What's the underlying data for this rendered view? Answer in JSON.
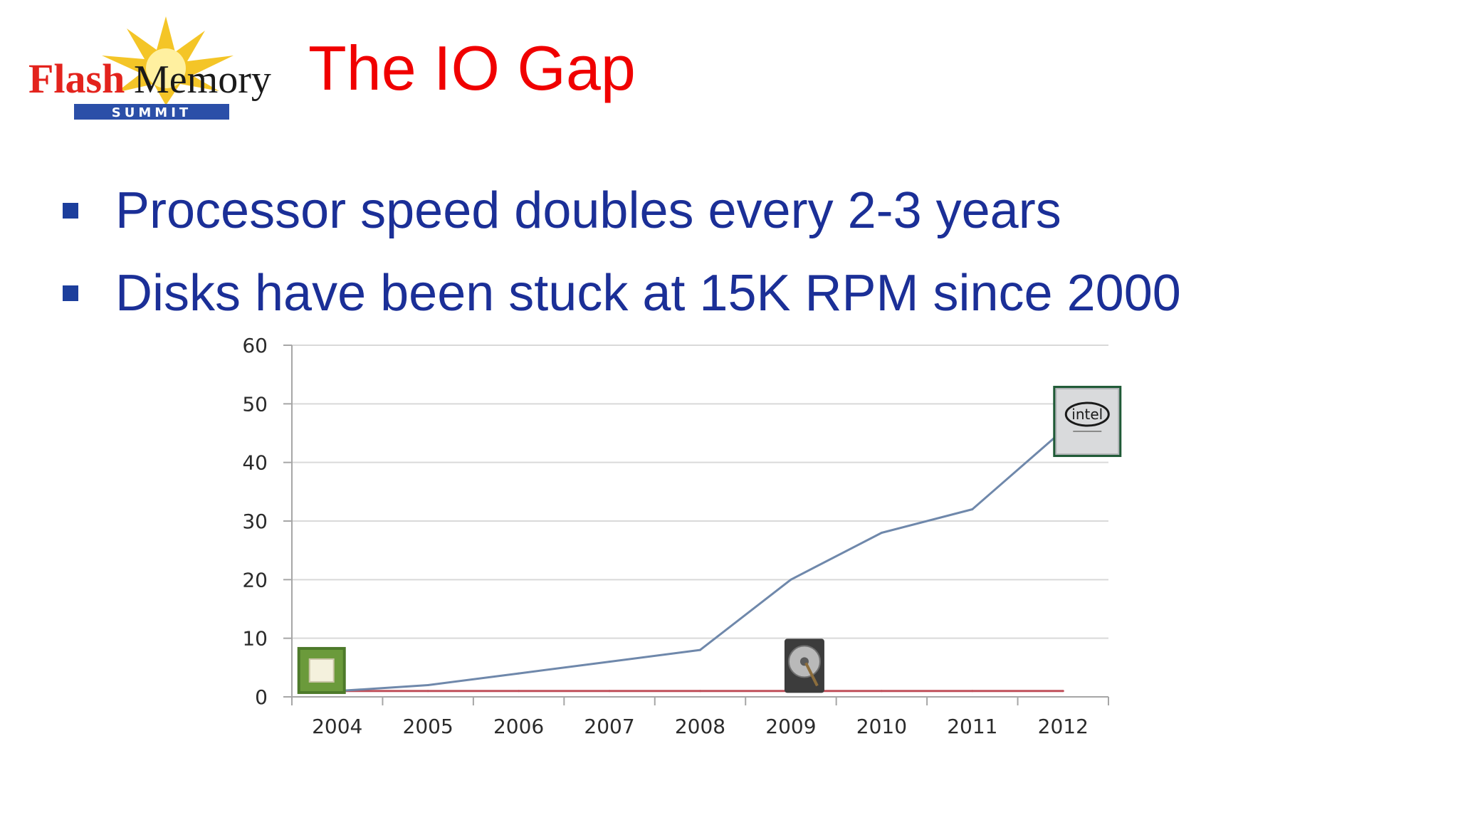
{
  "logo": {
    "word1": "Flash",
    "word2": "Memory",
    "word3": "SUMMIT",
    "colors": {
      "red": "#e3231d",
      "black": "#1a1a1a",
      "blue": "#2b4fa8",
      "sun": "#f3c21b"
    }
  },
  "title": "The IO Gap",
  "bullets": [
    {
      "text": "Processor speed doubles every 2-3 years"
    },
    {
      "text": "Disks have been stuck at 15K RPM since 2000"
    }
  ],
  "chart_data": {
    "type": "line",
    "categories": [
      "2004",
      "2005",
      "2006",
      "2007",
      "2008",
      "2009",
      "2010",
      "2011",
      "2012"
    ],
    "series": [
      {
        "color": "#6f88ab",
        "values": [
          1,
          2,
          4,
          6,
          8,
          20,
          28,
          32,
          45.5
        ]
      },
      {
        "color": "#c0505a",
        "values": [
          1,
          1,
          1,
          1,
          1,
          1,
          1,
          1,
          1
        ]
      }
    ],
    "yticks": [
      0,
      10,
      20,
      30,
      40,
      50,
      60
    ],
    "ylim": [
      0,
      60
    ],
    "grid": true,
    "images": [
      {
        "icon": "amd-processor-chip-icon",
        "at_category": "2004"
      },
      {
        "icon": "hard-disk-drive-icon",
        "at_category": "2009"
      },
      {
        "icon": "intel-processor-chip-icon",
        "at_category": "2012",
        "label": "intel"
      }
    ]
  }
}
